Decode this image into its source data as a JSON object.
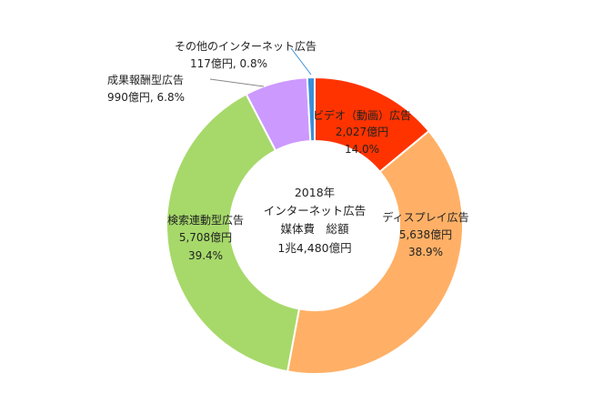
{
  "chart_data": {
    "type": "pie",
    "donut": true,
    "center_text": [
      "2018年",
      "インターネット広告",
      "媒体費　総額",
      "1兆4,480億円"
    ],
    "slices": [
      {
        "name": "ビデオ（動画）広告",
        "value_label": "2,027億円",
        "value": 2027,
        "percent": 14.0,
        "percent_label": "14.0%",
        "color": "#ff3300"
      },
      {
        "name": "ディスプレイ広告",
        "value_label": "5,638億円",
        "value": 5638,
        "percent": 38.9,
        "percent_label": "38.9%",
        "color": "#ffb066"
      },
      {
        "name": "検索連動型広告",
        "value_label": "5,708億円",
        "value": 5708,
        "percent": 39.4,
        "percent_label": "39.4%",
        "color": "#a6d96a"
      },
      {
        "name": "成果報酬型広告",
        "value_label": "990億円",
        "value": 990,
        "percent": 6.8,
        "percent_label": "6.8%",
        "color": "#cc99ff"
      },
      {
        "name": "その他のインターネット広告",
        "value_label": "117億円",
        "value": 117,
        "percent": 0.8,
        "percent_label": "0.8%",
        "color": "#3a8fd9"
      }
    ],
    "start_angle_deg": 0,
    "direction": "clockwise",
    "legend": "none"
  }
}
